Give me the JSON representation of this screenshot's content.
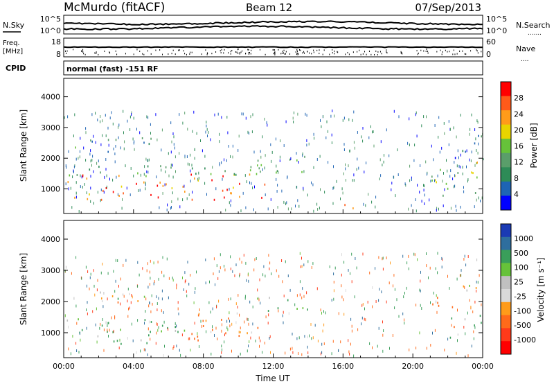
{
  "header": {
    "station": "McMurdo (fitACF)",
    "beam": "Beam 12",
    "date": "07/Sep/2013"
  },
  "noise_panel": {
    "left_label": "N.Sky",
    "right_label": "N.Search",
    "left_ticks": [
      "10^5",
      "10^0"
    ],
    "right_ticks": [
      "10^5",
      "10^0"
    ],
    "right_legend_mark": "......."
  },
  "freq_panel": {
    "left_label_line1": "Freq.",
    "left_label_line2": "[MHz]",
    "left_ticks": [
      "18",
      "8"
    ],
    "right_label": "Nave",
    "right_ticks": [
      "60",
      "0"
    ],
    "right_legend_mark": "...."
  },
  "cpid_panel": {
    "label": "CPID",
    "value": "normal (fast) -151 RF"
  },
  "colors": {
    "power_scale": [
      "#0000ff",
      "#1e64b4",
      "#2e8b57",
      "#5a9e6a",
      "#66c23a",
      "#e8d400",
      "#ff9b1a",
      "#ff5a1a",
      "#ff0000"
    ],
    "velocity_scale": [
      "#ff0000",
      "#ff3a1a",
      "#ff6a1a",
      "#ff9b1a",
      "#d9d9d9",
      "#c0c0c0",
      "#66c23a",
      "#3a9e5a",
      "#2e6e9e",
      "#1a3ab4"
    ]
  },
  "chart_data": [
    {
      "type": "heatmap",
      "name": "power",
      "xlabel": "",
      "ylabel": "Slant Range [km]",
      "x_tick_labels": [
        "00:00",
        "04:00",
        "08:00",
        "12:00",
        "16:00",
        "20:00",
        "00:00"
      ],
      "xlim_hours": [
        0,
        24
      ],
      "y_ticks": [
        1000,
        2000,
        3000,
        4000
      ],
      "ylim": [
        200,
        4600
      ],
      "colorbar_label": "Power [dB]",
      "colorbar_ticks": [
        "28",
        "24",
        "20",
        "16",
        "12",
        "8",
        "4"
      ],
      "colorbar_range": [
        0,
        32
      ],
      "scatter_regions": [
        {
          "t0": 0.0,
          "t1": 11.5,
          "r0": 650,
          "r1": 1500,
          "value": 26
        },
        {
          "t0": 0.0,
          "t1": 12.0,
          "r0": 1400,
          "r1": 1800,
          "value": 14
        },
        {
          "t0": 0.5,
          "t1": 5.0,
          "r0": 2200,
          "r1": 2700,
          "value": 10
        },
        {
          "t0": 10.0,
          "t1": 14.0,
          "r0": 1500,
          "r1": 2200,
          "value": 12
        },
        {
          "t0": 16.0,
          "t1": 18.0,
          "r0": 350,
          "r1": 600,
          "value": 26
        },
        {
          "t0": 21.0,
          "t1": 24.0,
          "r0": 800,
          "r1": 2000,
          "value": 18
        },
        {
          "t0": 22.0,
          "t1": 24.0,
          "r0": 2000,
          "r1": 2800,
          "value": 8
        }
      ]
    },
    {
      "type": "heatmap",
      "name": "velocity",
      "xlabel": "Time UT",
      "ylabel": "Slant Range [km]",
      "x_tick_labels": [
        "00:00",
        "04:00",
        "08:00",
        "12:00",
        "16:00",
        "20:00",
        "00:00"
      ],
      "xlim_hours": [
        0,
        24
      ],
      "y_ticks": [
        1000,
        2000,
        3000,
        4000
      ],
      "ylim": [
        200,
        4600
      ],
      "colorbar_label": "Velocity [m s⁻¹]",
      "colorbar_ticks": [
        "1000",
        "500",
        "100",
        "25",
        "-25",
        "-100",
        "-500",
        "-1000"
      ],
      "scatter_regions": [
        {
          "t0": 0.0,
          "t1": 7.0,
          "r0": 650,
          "r1": 1500,
          "value": 150
        },
        {
          "t0": 7.0,
          "t1": 11.5,
          "r0": 700,
          "r1": 1700,
          "value": -150
        },
        {
          "t0": 0.5,
          "t1": 5.0,
          "r0": 2000,
          "r1": 2500,
          "value": 0
        },
        {
          "t0": 11.0,
          "t1": 14.0,
          "r0": 1500,
          "r1": 2200,
          "value": 80
        },
        {
          "t0": 21.0,
          "t1": 22.5,
          "r0": 1200,
          "r1": 2200,
          "value": -300
        },
        {
          "t0": 22.0,
          "t1": 24.0,
          "r0": 800,
          "r1": 1600,
          "value": 100
        },
        {
          "t0": 22.5,
          "t1": 24.0,
          "r0": 2200,
          "r1": 2800,
          "value": 0
        }
      ]
    }
  ]
}
